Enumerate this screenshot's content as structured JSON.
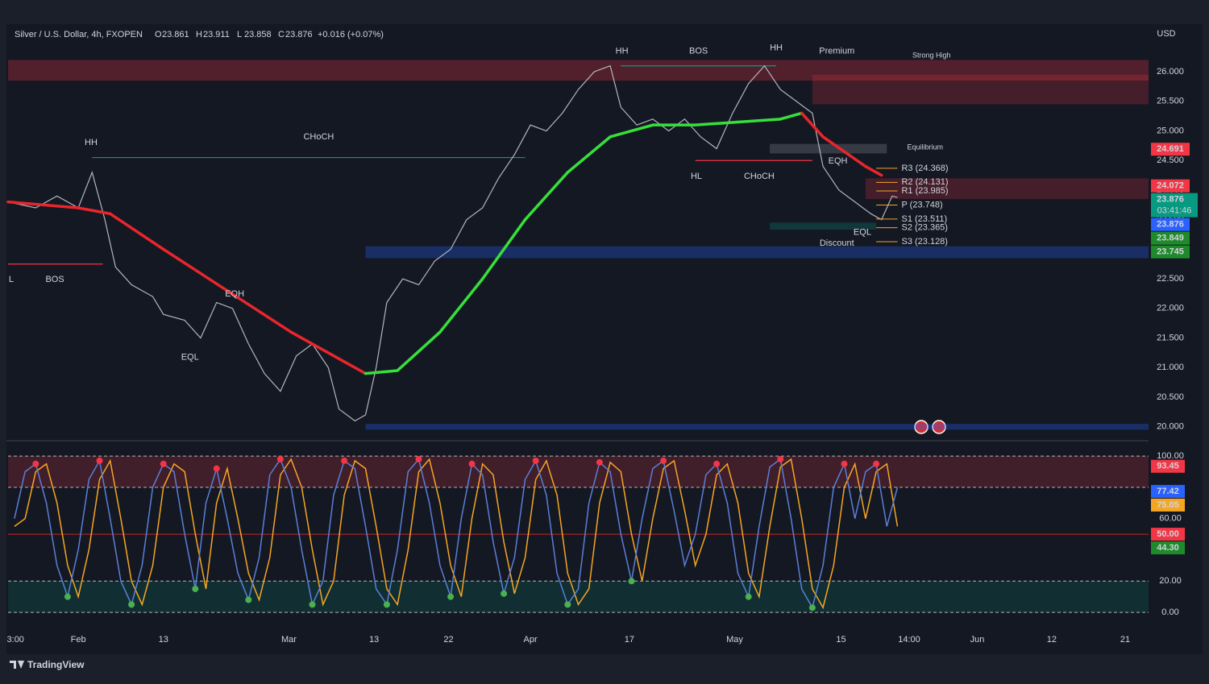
{
  "header": {
    "symbol": "Silver / U.S. Dollar, 4h, FXOPEN",
    "ohlc": [
      {
        "label": "O",
        "value": 23.861
      },
      {
        "label": "H",
        "value": 23.911
      },
      {
        "label": "L",
        "value": 23.858
      },
      {
        "label": "C",
        "value": 23.876
      }
    ],
    "change": "+0.016 (+0.07%)"
  },
  "x_axis": {
    "xlim": [
      -6.6,
      100.6
    ],
    "xticks": [
      {
        "value": -5.9,
        "label": "3:00"
      },
      {
        "value": 0,
        "label": "Feb"
      },
      {
        "value": 8,
        "label": "13"
      },
      {
        "value": 19.8,
        "label": "Mar"
      },
      {
        "value": 27.8,
        "label": "13"
      },
      {
        "value": 34.8,
        "label": "22"
      },
      {
        "value": 42.5,
        "label": "Apr"
      },
      {
        "value": 51.8,
        "label": "17"
      },
      {
        "value": 61.7,
        "label": "May"
      },
      {
        "value": 71.7,
        "label": "15"
      },
      {
        "value": 78.1,
        "label": "14:00"
      },
      {
        "value": 84.5,
        "label": "Jun"
      },
      {
        "value": 91.5,
        "label": "12"
      },
      {
        "value": 98.4,
        "label": "21"
      }
    ]
  },
  "price_chart": {
    "currency": "USD",
    "ylim": [
      19.86,
      26.6
    ],
    "yticks": [
      {
        "value": 20,
        "label": "20.000"
      },
      {
        "value": 20.5,
        "label": "20.500"
      },
      {
        "value": 21,
        "label": "21.000"
      },
      {
        "value": 21.5,
        "label": "21.500"
      },
      {
        "value": 22,
        "label": "22.000"
      },
      {
        "value": 22.5,
        "label": "22.500"
      },
      {
        "value": 23,
        "label": "23.000"
      },
      {
        "value": 23.5,
        "label": "23.500"
      },
      {
        "value": 24,
        "label": "24.000"
      },
      {
        "value": 24.5,
        "label": "24.500"
      },
      {
        "value": 25,
        "label": "25.000"
      },
      {
        "value": 25.5,
        "label": "25.500"
      },
      {
        "value": 26,
        "label": "26.000"
      }
    ],
    "price": {
      "color": "#b2b5be",
      "x": [
        -6.6,
        -4,
        -2,
        0,
        1.3,
        2.5,
        3.5,
        5,
        7,
        8,
        10,
        11.5,
        13,
        14.5,
        16,
        17.5,
        19,
        20.5,
        22,
        23.5,
        24.5,
        26,
        27,
        28,
        29,
        30.5,
        32,
        33.5,
        35,
        36.5,
        38,
        39.5,
        41,
        42.5,
        44,
        45.5,
        47,
        48.5,
        50,
        51,
        52.5,
        54,
        55.5,
        57,
        58.5,
        60,
        61.5,
        63,
        64.5,
        66,
        67.5,
        69,
        70,
        71.5,
        73,
        74.5,
        75.5,
        76.5,
        77
      ],
      "values": [
        23.8,
        23.7,
        23.9,
        23.7,
        24.3,
        23.5,
        22.7,
        22.4,
        22.2,
        21.9,
        21.8,
        21.5,
        22.1,
        22.0,
        21.4,
        20.9,
        20.6,
        21.2,
        21.4,
        21.0,
        20.3,
        20.1,
        20.2,
        21.0,
        22.1,
        22.5,
        22.4,
        22.8,
        23.0,
        23.5,
        23.7,
        24.2,
        24.6,
        25.1,
        25.0,
        25.3,
        25.7,
        26.0,
        26.1,
        25.4,
        25.1,
        25.2,
        25.0,
        25.2,
        24.9,
        24.7,
        25.3,
        25.8,
        26.1,
        25.7,
        25.5,
        25.3,
        24.4,
        24.0,
        23.8,
        23.6,
        23.5,
        23.9,
        23.876
      ]
    },
    "moving_average": {
      "up_color": "#36e03a",
      "down_color": "#e8262b",
      "x": [
        -6.6,
        0,
        3,
        8,
        14,
        20,
        25,
        27,
        30,
        34,
        38,
        42,
        46,
        50,
        54,
        58,
        62,
        66,
        68,
        70,
        74,
        75.5
      ],
      "values": [
        23.8,
        23.7,
        23.6,
        23.0,
        22.3,
        21.6,
        21.1,
        20.9,
        20.95,
        21.6,
        22.5,
        23.5,
        24.3,
        24.9,
        25.1,
        25.1,
        25.15,
        25.2,
        25.3,
        24.9,
        24.4,
        24.25
      ]
    },
    "zones": [
      {
        "x": [
          -6.6,
          100.6
        ],
        "y": [
          25.85,
          26.2
        ],
        "color": "rgba(242,54,69,0.28)"
      },
      {
        "x": [
          69,
          100.6
        ],
        "y": [
          25.45,
          25.95
        ],
        "color": "rgba(242,54,69,0.22)"
      },
      {
        "x": [
          74,
          100.6
        ],
        "y": [
          23.85,
          24.2
        ],
        "color": "rgba(242,54,69,0.22)"
      },
      {
        "x": [
          65,
          76
        ],
        "y": [
          24.62,
          24.78
        ],
        "color": "rgba(120,123,134,0.35)"
      },
      {
        "x": [
          65,
          75
        ],
        "y": [
          23.33,
          23.45
        ],
        "color": "rgba(8,153,129,0.25)"
      },
      {
        "x": [
          27,
          100.6
        ],
        "y": [
          22.85,
          23.05
        ],
        "color": "rgba(41,98,255,0.3)"
      },
      {
        "x": [
          27,
          100.6
        ],
        "y": [
          19.95,
          20.05
        ],
        "color": "rgba(41,98,255,0.3)"
      }
    ],
    "structure_lines": [
      {
        "x": [
          1.3,
          42
        ],
        "y": 24.55,
        "color": "#089981"
      },
      {
        "x": [
          -6.6,
          2.3
        ],
        "y": 22.75,
        "color": "#f23645"
      },
      {
        "x": [
          51,
          65.6
        ],
        "y": 26.1,
        "color": "#089981"
      },
      {
        "x": [
          58,
          69
        ],
        "y": 24.5,
        "color": "#f23645"
      }
    ],
    "annotations": [
      {
        "text": "HH",
        "x": 1.2,
        "y": 24.8,
        "color": "#f23645"
      },
      {
        "text": "L",
        "x": -6.3,
        "y": 22.49,
        "color": "#089981"
      },
      {
        "text": "BOS",
        "x": -2.2,
        "y": 22.49,
        "color": "#f23645"
      },
      {
        "text": "CHoCH",
        "x": 22.6,
        "y": 24.9,
        "color": "#089981"
      },
      {
        "text": "EQH",
        "x": 14.7,
        "y": 22.24,
        "color": "#f23645"
      },
      {
        "text": "EQL",
        "x": 10.5,
        "y": 21.17,
        "color": "#089981"
      },
      {
        "text": "HH",
        "x": 51.1,
        "y": 26.35,
        "color": "#f23645"
      },
      {
        "text": "BOS",
        "x": 58.3,
        "y": 26.35,
        "color": "#089981"
      },
      {
        "text": "HH",
        "x": 65.6,
        "y": 26.4,
        "color": "#f23645"
      },
      {
        "text": "Premium",
        "x": 71.3,
        "y": 26.35,
        "color": "#f23645"
      },
      {
        "text": "Strong High",
        "x": 80.2,
        "y": 26.27,
        "color": "#f23645"
      },
      {
        "text": "HL",
        "x": 58.1,
        "y": 24.23,
        "color": "#089981"
      },
      {
        "text": "CHoCH",
        "x": 64,
        "y": 24.23,
        "color": "#f23645"
      },
      {
        "text": "EQH",
        "x": 71.4,
        "y": 24.49,
        "color": "#f23645"
      },
      {
        "text": "Equilibrium",
        "x": 79.6,
        "y": 24.72,
        "color": "#d1d4dc"
      },
      {
        "text": "EQL",
        "x": 73.7,
        "y": 23.28,
        "color": "#089981"
      },
      {
        "text": "Discount",
        "x": 71.3,
        "y": 23.1,
        "color": "#089981"
      }
    ],
    "pivots": {
      "color": "#f5a623",
      "x": [
        75,
        77
      ],
      "levels": [
        {
          "text": "R3 (24.368)",
          "value": 24.368
        },
        {
          "text": "R2 (24.131)",
          "value": 24.131
        },
        {
          "text": "R1 (23.985)",
          "value": 23.985
        },
        {
          "text": "P (23.748)",
          "value": 23.748
        },
        {
          "text": "S1 (23.511)",
          "value": 23.511
        },
        {
          "text": "S2 (23.365)",
          "value": 23.365
        },
        {
          "text": "S3 (23.128)",
          "value": 23.128
        }
      ]
    },
    "price_tags": [
      {
        "value": 24.691,
        "color": "#f23645"
      },
      {
        "value": 24.072,
        "color": "#f23645"
      },
      {
        "value": 23.876,
        "color": "#089981",
        "countdown": "03:41:46"
      },
      {
        "value": 23.876,
        "color": "#2962ff"
      },
      {
        "value": 23.849,
        "color": "#1e8a2a"
      },
      {
        "value": 23.745,
        "color": "#1e8a2a"
      }
    ]
  },
  "oscillator": {
    "ylim": [
      -7.7,
      105.2
    ],
    "yticks": [
      {
        "value": 0,
        "label": "0.00"
      },
      {
        "value": 20,
        "label": "20.00"
      },
      {
        "value": 60,
        "label": "60.00"
      },
      {
        "value": 100,
        "label": "100.00"
      }
    ],
    "overbought": [
      80,
      100
    ],
    "oversold": [
      0,
      20
    ],
    "midline": 50,
    "x": [
      -6,
      -5,
      -4,
      -3,
      -2,
      -1,
      0,
      1,
      2,
      3,
      4,
      5,
      6,
      7,
      8,
      9,
      10,
      11,
      12,
      13,
      14,
      15,
      16,
      17,
      18,
      19,
      20,
      21,
      22,
      23,
      24,
      25,
      26,
      27,
      28,
      29,
      30,
      31,
      32,
      33,
      34,
      35,
      36,
      37,
      38,
      39,
      40,
      41,
      42,
      43,
      44,
      45,
      46,
      47,
      48,
      49,
      50,
      51,
      52,
      53,
      54,
      55,
      56,
      57,
      58,
      59,
      60,
      61,
      62,
      63,
      64,
      65,
      66,
      67,
      68,
      69,
      70,
      71,
      72,
      73,
      74,
      75,
      76,
      77
    ],
    "k": {
      "color": "#5b7fd6",
      "values": [
        60,
        90,
        95,
        70,
        30,
        10,
        40,
        85,
        97,
        60,
        20,
        5,
        30,
        80,
        95,
        90,
        50,
        15,
        70,
        92,
        60,
        25,
        8,
        35,
        88,
        98,
        80,
        40,
        5,
        20,
        75,
        97,
        92,
        55,
        15,
        5,
        40,
        90,
        98,
        70,
        30,
        10,
        60,
        95,
        88,
        45,
        12,
        35,
        85,
        97,
        75,
        25,
        5,
        15,
        70,
        96,
        90,
        50,
        20,
        60,
        92,
        97,
        65,
        30,
        50,
        88,
        95,
        70,
        25,
        10,
        55,
        93,
        98,
        60,
        15,
        3,
        30,
        80,
        95,
        60,
        90,
        95,
        55,
        80
      ]
    },
    "d": {
      "color": "#f5a623",
      "values": [
        55,
        60,
        90,
        95,
        70,
        30,
        10,
        40,
        85,
        97,
        60,
        20,
        5,
        30,
        80,
        95,
        90,
        50,
        15,
        70,
        92,
        60,
        25,
        8,
        35,
        88,
        98,
        80,
        40,
        5,
        20,
        75,
        97,
        92,
        55,
        15,
        5,
        40,
        90,
        98,
        70,
        30,
        10,
        60,
        95,
        88,
        45,
        12,
        35,
        85,
        97,
        75,
        25,
        5,
        15,
        70,
        96,
        90,
        50,
        20,
        60,
        92,
        97,
        65,
        30,
        50,
        88,
        95,
        70,
        25,
        10,
        55,
        93,
        98,
        60,
        15,
        3,
        30,
        80,
        95,
        60,
        90,
        95,
        55
      ]
    },
    "tags": [
      {
        "value": 93.45,
        "color": "#f23645"
      },
      {
        "value": 77.42,
        "color": "#2962ff"
      },
      {
        "value": 75.05,
        "color": "#f5a623"
      },
      {
        "value": 50,
        "label": "50.00",
        "color": "#f23645"
      },
      {
        "value": 44.3,
        "label": "44.30",
        "color": "#1e8a2a"
      }
    ]
  },
  "footer": {
    "brand": "TradingView"
  }
}
